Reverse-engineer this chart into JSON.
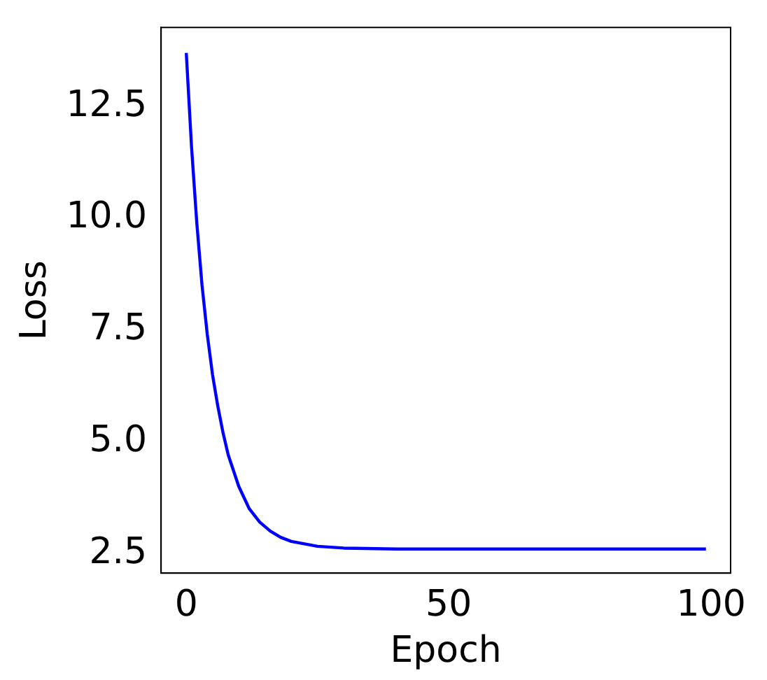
{
  "chart_data": {
    "type": "line",
    "xlabel": "Epoch",
    "ylabel": "Loss",
    "series": [
      {
        "color": "#0000ff",
        "x": [
          0,
          1,
          2,
          3,
          4,
          5,
          6,
          7,
          8,
          10,
          12,
          14,
          16,
          18,
          20,
          25,
          30,
          40,
          60,
          80,
          99
        ],
        "values": [
          13.7,
          11.6,
          9.9,
          8.5,
          7.4,
          6.5,
          5.8,
          5.2,
          4.7,
          4.0,
          3.5,
          3.2,
          3.0,
          2.86,
          2.77,
          2.66,
          2.62,
          2.6,
          2.6,
          2.6,
          2.6
        ]
      }
    ],
    "xlim": [
      -4.8,
      103.7
    ],
    "ylim": [
      2.06,
      14.27
    ],
    "xticks": [
      0,
      50,
      100
    ],
    "yticks": [
      2.5,
      {
        "value": 5,
        "label": "5.0"
      },
      7.5,
      {
        "value": 10,
        "label": "10.0"
      },
      12.5
    ],
    "grid": false,
    "legend": false,
    "marker": "none",
    "line_style": "solid"
  }
}
